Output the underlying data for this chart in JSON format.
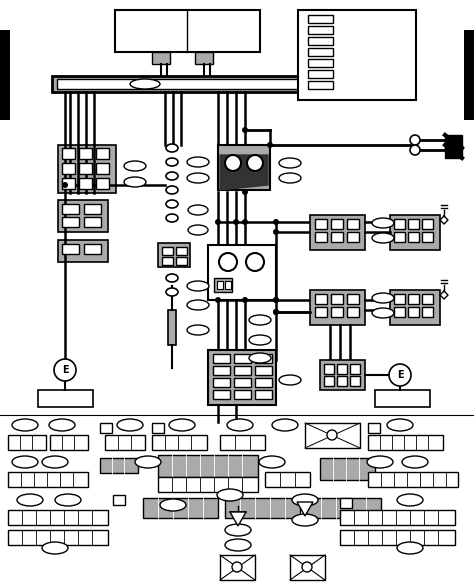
{
  "bg_color": "#ffffff",
  "lc": "#000000",
  "gc": "#aaaaaa",
  "fig_width": 4.74,
  "fig_height": 5.87,
  "dpi": 100
}
